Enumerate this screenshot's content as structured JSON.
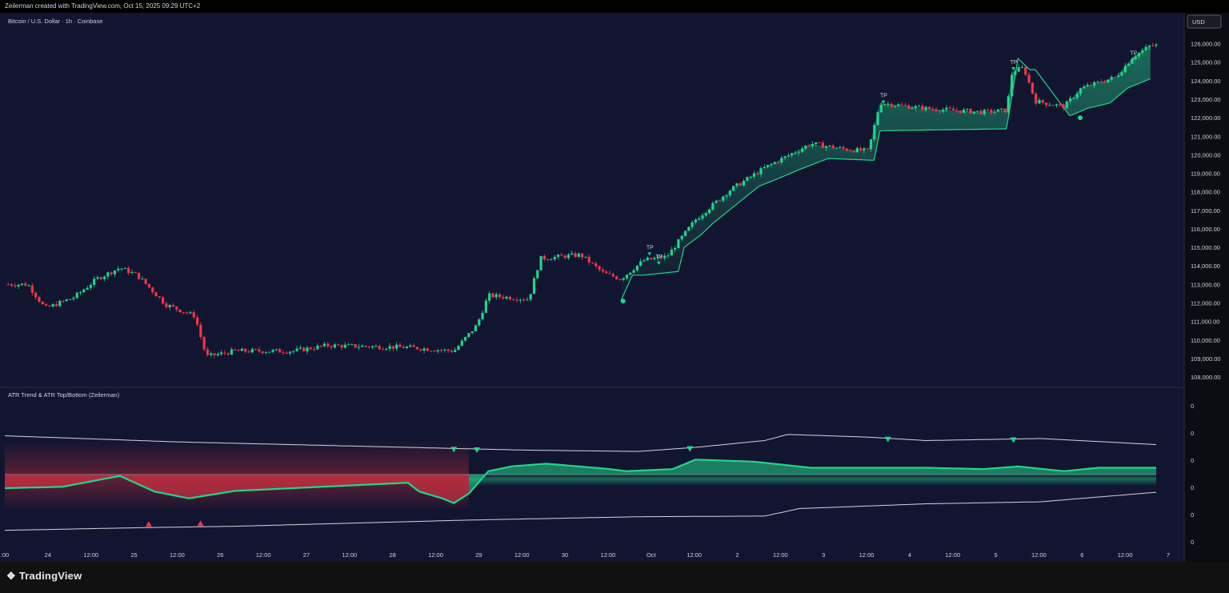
{
  "header": {
    "credit": "Zeilerman created with TradingView.com, Oct 15, 2025 09:29 UTC+2"
  },
  "symbol_title": "Bitcoin / U.S. Dollar · 1h · Coinbase",
  "currency_label": "USD",
  "indicator_title": "ATR Trend & ATR Top/Bottom (Zeilerman)",
  "footer": {
    "brand": "TradingView"
  },
  "colors": {
    "up": "#22d48a",
    "down": "#f23645",
    "bg": "#121530",
    "grid": "#2a2e39",
    "text": "#d1d4dc"
  },
  "chart_data": [
    {
      "type": "candlestick",
      "title": "Bitcoin / U.S. Dollar · 1h · Coinbase",
      "ylim": [
        107700,
        126500
      ],
      "y_ticks": [
        108000,
        109000,
        110000,
        111000,
        112000,
        113000,
        114000,
        115000,
        116000,
        117000,
        118000,
        119000,
        120000,
        121000,
        122000,
        123000,
        124000,
        125000,
        126000
      ],
      "y_tick_labels": [
        "108,000.00",
        "109,000.00",
        "110,000.00",
        "111,000.00",
        "112,000.00",
        "113,000.00",
        "114,000.00",
        "115,000.00",
        "116,000.00",
        "117,000.00",
        "118,000.00",
        "119,000.00",
        "120,000.00",
        "121,000.00",
        "122,000.00",
        "123,000.00",
        "124,000.00",
        "125,000.00",
        "126,000.00"
      ],
      "price_path": [
        [
          0,
          113000
        ],
        [
          0.02,
          113000
        ],
        [
          0.035,
          111700
        ],
        [
          0.06,
          112300
        ],
        [
          0.08,
          113300
        ],
        [
          0.1,
          113900
        ],
        [
          0.115,
          113500
        ],
        [
          0.14,
          111900
        ],
        [
          0.165,
          111300
        ],
        [
          0.175,
          109100
        ],
        [
          0.2,
          109400
        ],
        [
          0.25,
          109400
        ],
        [
          0.28,
          109700
        ],
        [
          0.35,
          109600
        ],
        [
          0.39,
          109400
        ],
        [
          0.41,
          110800
        ],
        [
          0.42,
          112400
        ],
        [
          0.455,
          112200
        ],
        [
          0.465,
          114400
        ],
        [
          0.5,
          114600
        ],
        [
          0.52,
          113600
        ],
        [
          0.535,
          113300
        ],
        [
          0.555,
          114300
        ],
        [
          0.575,
          114500
        ],
        [
          0.6,
          116500
        ],
        [
          0.63,
          118100
        ],
        [
          0.66,
          119300
        ],
        [
          0.7,
          120600
        ],
        [
          0.73,
          120300
        ],
        [
          0.75,
          120200
        ],
        [
          0.76,
          122800
        ],
        [
          0.8,
          122500
        ],
        [
          0.85,
          122300
        ],
        [
          0.87,
          122400
        ],
        [
          0.875,
          124500
        ],
        [
          0.885,
          124700
        ],
        [
          0.895,
          122900
        ],
        [
          0.92,
          122600
        ],
        [
          0.935,
          123600
        ],
        [
          0.965,
          124200
        ],
        [
          0.98,
          125300
        ],
        [
          0.995,
          125900
        ]
      ],
      "trend_stop_path": [
        [
          0.535,
          112100
        ],
        [
          0.545,
          113500
        ],
        [
          0.555,
          113500
        ],
        [
          0.585,
          113700
        ],
        [
          0.59,
          115000
        ],
        [
          0.605,
          115700
        ],
        [
          0.615,
          116300
        ],
        [
          0.635,
          117300
        ],
        [
          0.655,
          118300
        ],
        [
          0.675,
          118800
        ],
        [
          0.69,
          119200
        ],
        [
          0.715,
          119800
        ],
        [
          0.755,
          119700
        ],
        [
          0.76,
          121300
        ],
        [
          0.87,
          121400
        ],
        [
          0.88,
          125200
        ],
        [
          0.89,
          124600
        ],
        [
          0.895,
          124600
        ],
        [
          0.925,
          122100
        ],
        [
          0.94,
          122500
        ],
        [
          0.96,
          122800
        ],
        [
          0.975,
          123600
        ],
        [
          0.995,
          124100
        ]
      ],
      "tp_markers": [
        [
          0.56,
          114600
        ],
        [
          0.568,
          114100
        ],
        [
          0.763,
          122800
        ],
        [
          0.876,
          124600
        ],
        [
          0.98,
          125100
        ]
      ],
      "trend_start_dots": [
        [
          0.537,
          112100
        ],
        [
          0.934,
          122000
        ]
      ],
      "tp_label": "TP"
    },
    {
      "type": "line",
      "title": "ATR Trend & ATR Top/Bottom (Zeilerman)",
      "ylim": [
        -1,
        1
      ],
      "y_tick_labels": [
        "0",
        "0",
        "0",
        "0",
        "0",
        "0"
      ],
      "x_tick_labels": [
        ":00",
        "24",
        "12:00",
        "25",
        "12:00",
        "26",
        "12:00",
        "27",
        "12:00",
        "28",
        "12:00",
        "29",
        "12:00",
        "30",
        "12:00",
        "Oct",
        "12:00",
        "2",
        "12:00",
        "3",
        "12:00",
        "4",
        "12:00",
        "5",
        "12:00",
        "6",
        "12:00",
        "7"
      ],
      "baseline": 0,
      "series": [
        {
          "values": [
            [
              0,
              0.57
            ],
            [
              0.15,
              0.48
            ],
            [
              0.3,
              0.42
            ],
            [
              0.45,
              0.36
            ],
            [
              0.55,
              0.34
            ],
            [
              0.6,
              0.4
            ],
            [
              0.66,
              0.5
            ],
            [
              0.68,
              0.59
            ],
            [
              0.75,
              0.55
            ],
            [
              0.8,
              0.5
            ],
            [
              0.9,
              0.53
            ],
            [
              1,
              0.44
            ]
          ]
        },
        {
          "values": [
            [
              0,
              -0.82
            ],
            [
              0.12,
              -0.78
            ],
            [
              0.2,
              -0.76
            ],
            [
              0.4,
              -0.67
            ],
            [
              0.55,
              -0.62
            ],
            [
              0.66,
              -0.61
            ],
            [
              0.69,
              -0.5
            ],
            [
              0.8,
              -0.43
            ],
            [
              0.9,
              -0.4
            ],
            [
              1,
              -0.26
            ]
          ]
        },
        {
          "values": [
            [
              0,
              -0.2
            ],
            [
              0.05,
              -0.18
            ],
            [
              0.1,
              -0.02
            ],
            [
              0.13,
              -0.25
            ],
            [
              0.16,
              -0.35
            ],
            [
              0.2,
              -0.24
            ],
            [
              0.3,
              -0.16
            ],
            [
              0.35,
              -0.12
            ],
            [
              0.36,
              -0.25
            ],
            [
              0.38,
              -0.35
            ],
            [
              0.39,
              -0.42
            ],
            [
              0.403,
              -0.28
            ],
            [
              0.42,
              0.05
            ],
            [
              0.44,
              0.12
            ],
            [
              0.47,
              0.16
            ],
            [
              0.52,
              0.09
            ],
            [
              0.54,
              0.05
            ],
            [
              0.58,
              0.08
            ],
            [
              0.6,
              0.22
            ],
            [
              0.65,
              0.19
            ],
            [
              0.7,
              0.1
            ],
            [
              0.75,
              0.1
            ],
            [
              0.8,
              0.1
            ],
            [
              0.85,
              0.08
            ],
            [
              0.88,
              0.12
            ],
            [
              0.92,
              0.05
            ],
            [
              0.95,
              0.1
            ],
            [
              1,
              0.1
            ]
          ]
        }
      ]
    }
  ]
}
